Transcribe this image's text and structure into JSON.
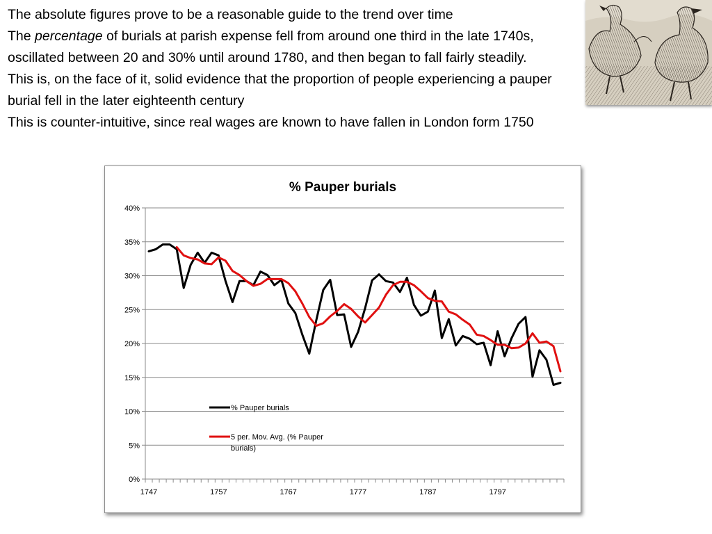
{
  "text": {
    "line1": "The absolute figures prove to be a reasonable guide to the trend over time",
    "para2_pre": "The ",
    "para2_em": "percentage",
    "para2_post": " of burials at parish expense fell from around one third in the late 1740s, oscillated between 20 and 30% until around 1780, and then began to fall fairly steadily.",
    "para3": "This is, on the face of it, solid evidence that the proportion of people experiencing a pauper burial fell in the later eighteenth century",
    "para4": "This is counter-intuitive, since real wages are known to have fallen in London form 1750"
  },
  "chart_data": {
    "type": "line",
    "title": "% Pauper burials",
    "xlabel": "",
    "ylabel": "",
    "x": [
      1747,
      1748,
      1749,
      1750,
      1751,
      1752,
      1753,
      1754,
      1755,
      1756,
      1757,
      1758,
      1759,
      1760,
      1761,
      1762,
      1763,
      1764,
      1765,
      1766,
      1767,
      1768,
      1769,
      1770,
      1771,
      1772,
      1773,
      1774,
      1775,
      1776,
      1777,
      1778,
      1779,
      1780,
      1781,
      1782,
      1783,
      1784,
      1785,
      1786,
      1787,
      1788,
      1789,
      1790,
      1791,
      1792,
      1793,
      1794,
      1795,
      1796,
      1797,
      1798,
      1799,
      1800,
      1801,
      1802,
      1803,
      1804,
      1805,
      1806
    ],
    "xticks": [
      1747,
      1757,
      1767,
      1777,
      1787,
      1797
    ],
    "ylim": [
      0,
      40
    ],
    "yticks": [
      "0%",
      "5%",
      "10%",
      "15%",
      "20%",
      "25%",
      "30%",
      "35%",
      "40%"
    ],
    "grid": "horizontal",
    "legend_position": "inside-lower-left",
    "series": [
      {
        "name": "% Pauper burials",
        "color": "#000000",
        "values": [
          33.6,
          33.9,
          34.6,
          34.6,
          33.9,
          28.2,
          31.6,
          33.4,
          31.9,
          33.4,
          33.0,
          29.2,
          26.1,
          29.2,
          29.2,
          28.6,
          30.6,
          30.1,
          28.6,
          29.4,
          25.9,
          24.5,
          21.3,
          18.5,
          23.4,
          27.9,
          29.4,
          24.2,
          24.3,
          19.5,
          21.7,
          25.2,
          29.3,
          30.2,
          29.2,
          29.0,
          27.6,
          29.7,
          25.7,
          24.1,
          24.7,
          27.8,
          20.8,
          23.6,
          19.7,
          21.1,
          20.7,
          19.9,
          20.1,
          16.8,
          21.8,
          18.1,
          20.8,
          22.9,
          23.9,
          15.1,
          19.0,
          17.6,
          13.9,
          14.2
        ]
      },
      {
        "name": "5 per. Mov. Avg. (% Pauper burials)",
        "color": "#e01010",
        "values": [
          null,
          null,
          null,
          null,
          34.2,
          33.0,
          32.6,
          32.4,
          31.8,
          31.7,
          32.7,
          32.2,
          30.7,
          30.1,
          29.2,
          28.5,
          28.8,
          29.5,
          29.5,
          29.5,
          28.9,
          27.7,
          25.9,
          23.9,
          22.6,
          23.0,
          24.0,
          24.8,
          25.8,
          25.1,
          24.0,
          23.1,
          24.2,
          25.3,
          27.2,
          28.6,
          29.1,
          29.1,
          28.6,
          27.7,
          26.7,
          26.3,
          26.2,
          24.7,
          24.3,
          23.5,
          22.8,
          21.3,
          21.1,
          20.5,
          19.8,
          19.8,
          19.3,
          19.4,
          20.0,
          21.5,
          20.1,
          20.3,
          19.6,
          15.9
        ]
      }
    ]
  }
}
